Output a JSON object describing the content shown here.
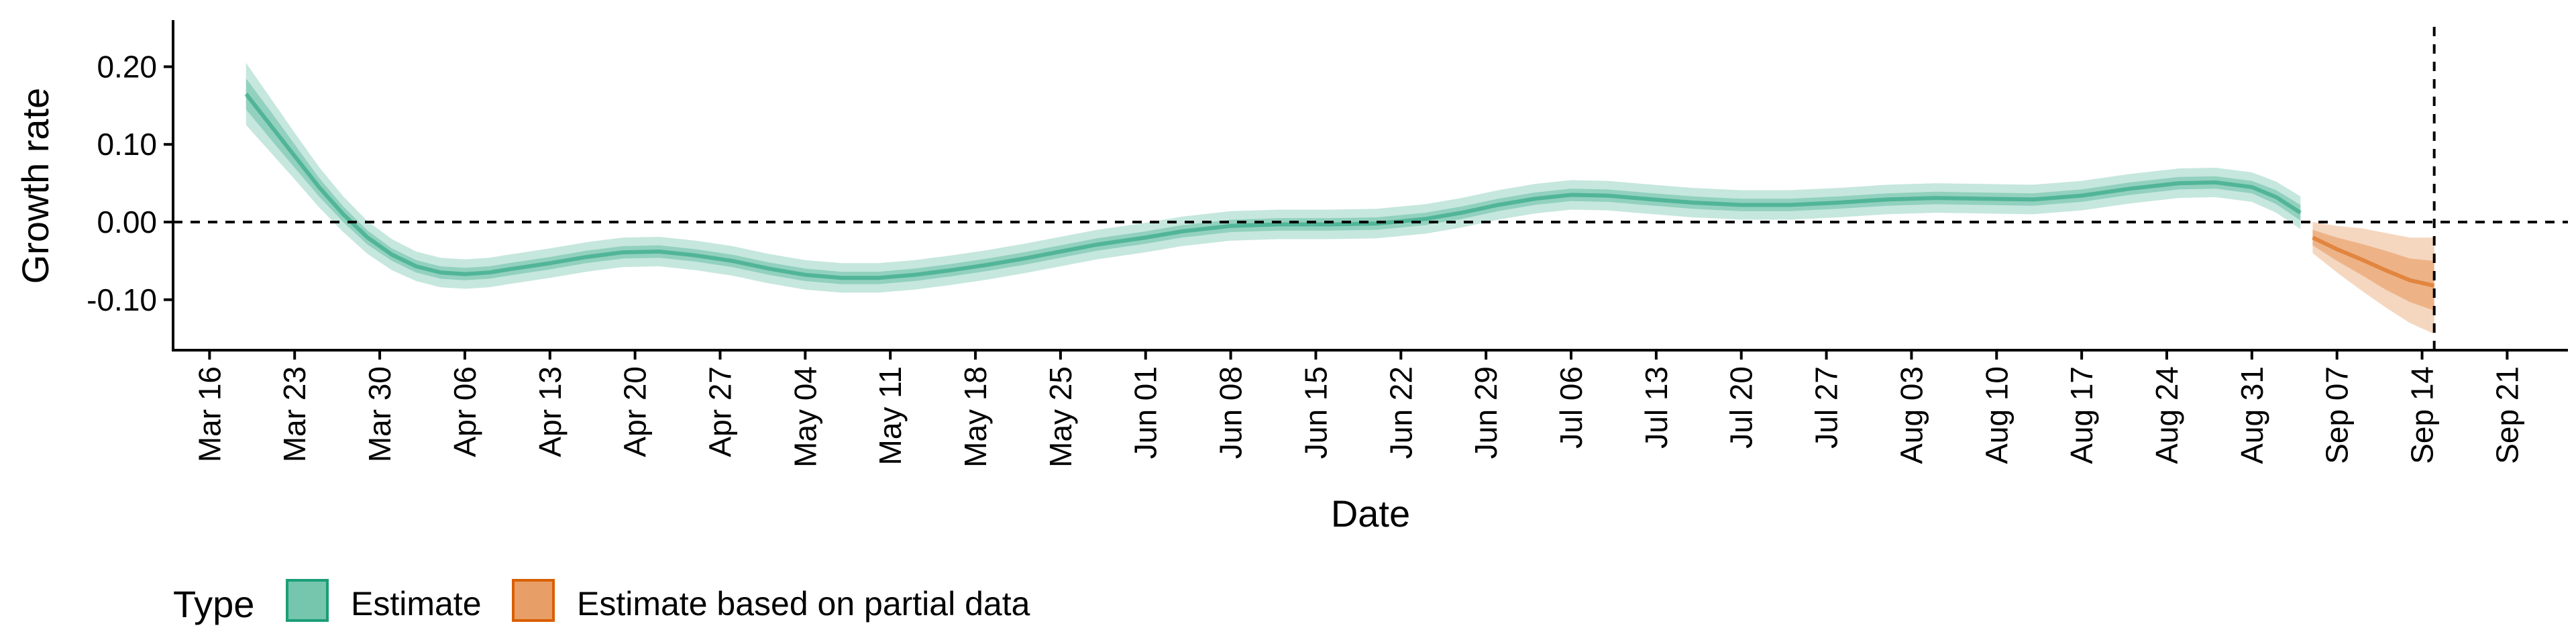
{
  "chart_data": {
    "type": "area",
    "xlabel": "Date",
    "ylabel": "Growth rate",
    "x_ticks": [
      "Mar 16",
      "Mar 23",
      "Mar 30",
      "Apr 06",
      "Apr 13",
      "Apr 20",
      "Apr 27",
      "May 04",
      "May 11",
      "May 18",
      "May 25",
      "Jun 01",
      "Jun 08",
      "Jun 15",
      "Jun 22",
      "Jun 29",
      "Jul 06",
      "Jul 13",
      "Jul 20",
      "Jul 27",
      "Aug 03",
      "Aug 10",
      "Aug 17",
      "Aug 24",
      "Aug 31",
      "Sep 07",
      "Sep 14",
      "Sep 21"
    ],
    "y_ticks": [
      "0.20",
      "0.10",
      "0.00",
      "-0.10"
    ],
    "xlim": [
      "2020-03-13",
      "2020-09-26"
    ],
    "ylim": [
      -0.165,
      0.26
    ],
    "reference_lines": {
      "y": 0.0,
      "x": "2020-09-15"
    },
    "legend": {
      "title": "Type",
      "position": "bottom-left",
      "entries": [
        "Estimate",
        "Estimate based on partial data"
      ]
    },
    "colors": {
      "Estimate": "#1b9e77",
      "Estimate based on partial data": "#d95f02"
    },
    "series": [
      {
        "name": "Estimate",
        "x": [
          "2020-03-19",
          "2020-03-21",
          "2020-03-23",
          "2020-03-25",
          "2020-03-27",
          "2020-03-29",
          "2020-03-31",
          "2020-04-02",
          "2020-04-04",
          "2020-04-06",
          "2020-04-08",
          "2020-04-10",
          "2020-04-13",
          "2020-04-16",
          "2020-04-19",
          "2020-04-22",
          "2020-04-25",
          "2020-04-28",
          "2020-05-01",
          "2020-05-04",
          "2020-05-07",
          "2020-05-10",
          "2020-05-13",
          "2020-05-16",
          "2020-05-19",
          "2020-05-22",
          "2020-05-25",
          "2020-05-28",
          "2020-06-01",
          "2020-06-04",
          "2020-06-08",
          "2020-06-12",
          "2020-06-16",
          "2020-06-20",
          "2020-06-24",
          "2020-06-27",
          "2020-06-30",
          "2020-07-03",
          "2020-07-06",
          "2020-07-09",
          "2020-07-12",
          "2020-07-16",
          "2020-07-20",
          "2020-07-24",
          "2020-07-28",
          "2020-08-01",
          "2020-08-05",
          "2020-08-09",
          "2020-08-13",
          "2020-08-17",
          "2020-08-21",
          "2020-08-25",
          "2020-08-28",
          "2020-08-31",
          "2020-09-02",
          "2020-09-04"
        ],
        "median": [
          0.165,
          0.125,
          0.085,
          0.045,
          0.01,
          -0.02,
          -0.042,
          -0.057,
          -0.065,
          -0.067,
          -0.065,
          -0.06,
          -0.053,
          -0.045,
          -0.039,
          -0.038,
          -0.043,
          -0.05,
          -0.06,
          -0.068,
          -0.072,
          -0.072,
          -0.068,
          -0.062,
          -0.055,
          -0.047,
          -0.038,
          -0.029,
          -0.02,
          -0.012,
          -0.005,
          -0.003,
          -0.003,
          -0.002,
          0.004,
          0.012,
          0.022,
          0.03,
          0.035,
          0.034,
          0.03,
          0.025,
          0.022,
          0.022,
          0.025,
          0.029,
          0.031,
          0.03,
          0.029,
          0.034,
          0.043,
          0.05,
          0.051,
          0.045,
          0.032,
          0.012
        ],
        "inner_width": [
          0.02,
          0.018,
          0.015,
          0.012,
          0.01,
          0.009,
          0.008,
          0.008,
          0.008,
          0.008,
          0.008,
          0.008,
          0.008,
          0.008,
          0.008,
          0.008,
          0.008,
          0.008,
          0.008,
          0.008,
          0.008,
          0.008,
          0.008,
          0.008,
          0.008,
          0.008,
          0.008,
          0.008,
          0.008,
          0.008,
          0.008,
          0.008,
          0.008,
          0.008,
          0.008,
          0.008,
          0.008,
          0.008,
          0.008,
          0.008,
          0.008,
          0.008,
          0.008,
          0.008,
          0.008,
          0.008,
          0.008,
          0.008,
          0.008,
          0.008,
          0.008,
          0.008,
          0.008,
          0.008,
          0.009,
          0.01
        ],
        "outer_width": [
          0.04,
          0.035,
          0.03,
          0.026,
          0.023,
          0.021,
          0.02,
          0.019,
          0.019,
          0.019,
          0.019,
          0.019,
          0.019,
          0.019,
          0.019,
          0.019,
          0.019,
          0.019,
          0.019,
          0.019,
          0.019,
          0.019,
          0.019,
          0.019,
          0.019,
          0.019,
          0.019,
          0.019,
          0.019,
          0.019,
          0.019,
          0.019,
          0.019,
          0.019,
          0.019,
          0.019,
          0.019,
          0.019,
          0.019,
          0.019,
          0.019,
          0.019,
          0.019,
          0.019,
          0.019,
          0.019,
          0.019,
          0.019,
          0.019,
          0.019,
          0.019,
          0.019,
          0.019,
          0.019,
          0.02,
          0.021
        ]
      },
      {
        "name": "Estimate based on partial data",
        "x": [
          "2020-09-05",
          "2020-09-07",
          "2020-09-09",
          "2020-09-11",
          "2020-09-13",
          "2020-09-15"
        ],
        "median": [
          -0.02,
          -0.035,
          -0.048,
          -0.062,
          -0.075,
          -0.082
        ],
        "inner_width": [
          0.01,
          0.015,
          0.02,
          0.025,
          0.028,
          0.032
        ],
        "outer_width": [
          0.02,
          0.03,
          0.04,
          0.048,
          0.055,
          0.062
        ]
      }
    ]
  }
}
